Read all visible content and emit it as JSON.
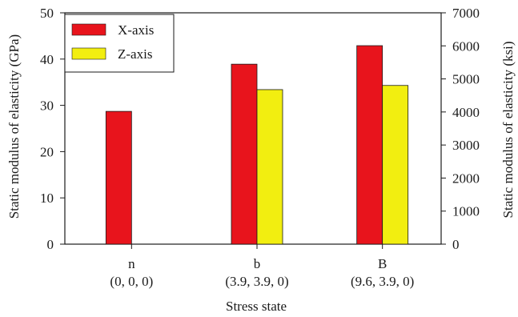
{
  "chart_data": {
    "type": "bar",
    "xlabel": "Stress state",
    "ylabel": "Static modulus of elasticity (GPa)",
    "y2label": "Static modulus of elasticity (ksi)",
    "categories": [
      {
        "name": "n",
        "sub": "(0, 0, 0)"
      },
      {
        "name": "b",
        "sub": "(3.9, 3.9, 0)"
      },
      {
        "name": "B",
        "sub": "(9.6, 3.9, 0)"
      }
    ],
    "series": [
      {
        "name": "X-axis",
        "color": "#e8141c",
        "values": [
          28.7,
          38.9,
          42.9
        ]
      },
      {
        "name": "Z-axis",
        "color": "#f2ee10",
        "values": [
          null,
          33.4,
          34.3
        ]
      }
    ],
    "ylim": [
      0,
      50
    ],
    "yticks": [
      "0",
      "10",
      "20",
      "30",
      "40",
      "50"
    ],
    "y2lim": [
      0,
      7000
    ],
    "y2ticks": [
      "0",
      "1000",
      "2000",
      "3000",
      "4000",
      "5000",
      "6000",
      "7000"
    ],
    "legend_position": "top-left",
    "grid": false
  }
}
